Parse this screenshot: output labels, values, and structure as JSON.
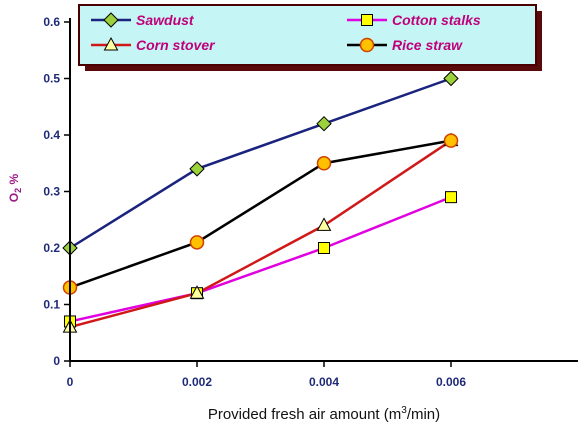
{
  "chart_data": {
    "type": "line",
    "xlabel_parts": [
      "Provided fresh air amount (m",
      "3",
      "/min)"
    ],
    "ylabel_parts": [
      "O",
      "2",
      " %"
    ],
    "x_tick_labels": [
      "0",
      "0.002",
      "0.004",
      "0.006"
    ],
    "y_tick_labels": [
      "0",
      "0.1",
      "0.2",
      "0.3",
      "0.4",
      "0.5",
      "0.6"
    ],
    "xlim": [
      0,
      0.008
    ],
    "ylim": [
      0,
      0.6
    ],
    "grid": false,
    "legend_placement": "top",
    "legend_background": "#c6f5f5",
    "x": [
      0,
      0.002,
      0.004,
      0.006
    ],
    "series": [
      {
        "name": "Sawdust",
        "values": [
          0.2,
          0.34,
          0.42,
          0.5
        ],
        "line_color": "#1a237e",
        "marker": "diamond",
        "marker_color": "#9bd13a"
      },
      {
        "name": "Cotton stalks",
        "values": [
          0.07,
          0.12,
          0.2,
          0.29
        ],
        "line_color": "#e000e0",
        "marker": "square",
        "marker_color": "#ffff00"
      },
      {
        "name": "Corn stover",
        "values": [
          0.06,
          0.12,
          0.24,
          0.39
        ],
        "line_color": "#d01818",
        "marker": "triangle",
        "marker_color": "#ffffa0"
      },
      {
        "name": "Rice straw",
        "values": [
          0.13,
          0.21,
          0.35,
          0.39
        ],
        "line_color": "#000000",
        "marker": "circle",
        "marker_color": "#ffc000"
      }
    ]
  }
}
